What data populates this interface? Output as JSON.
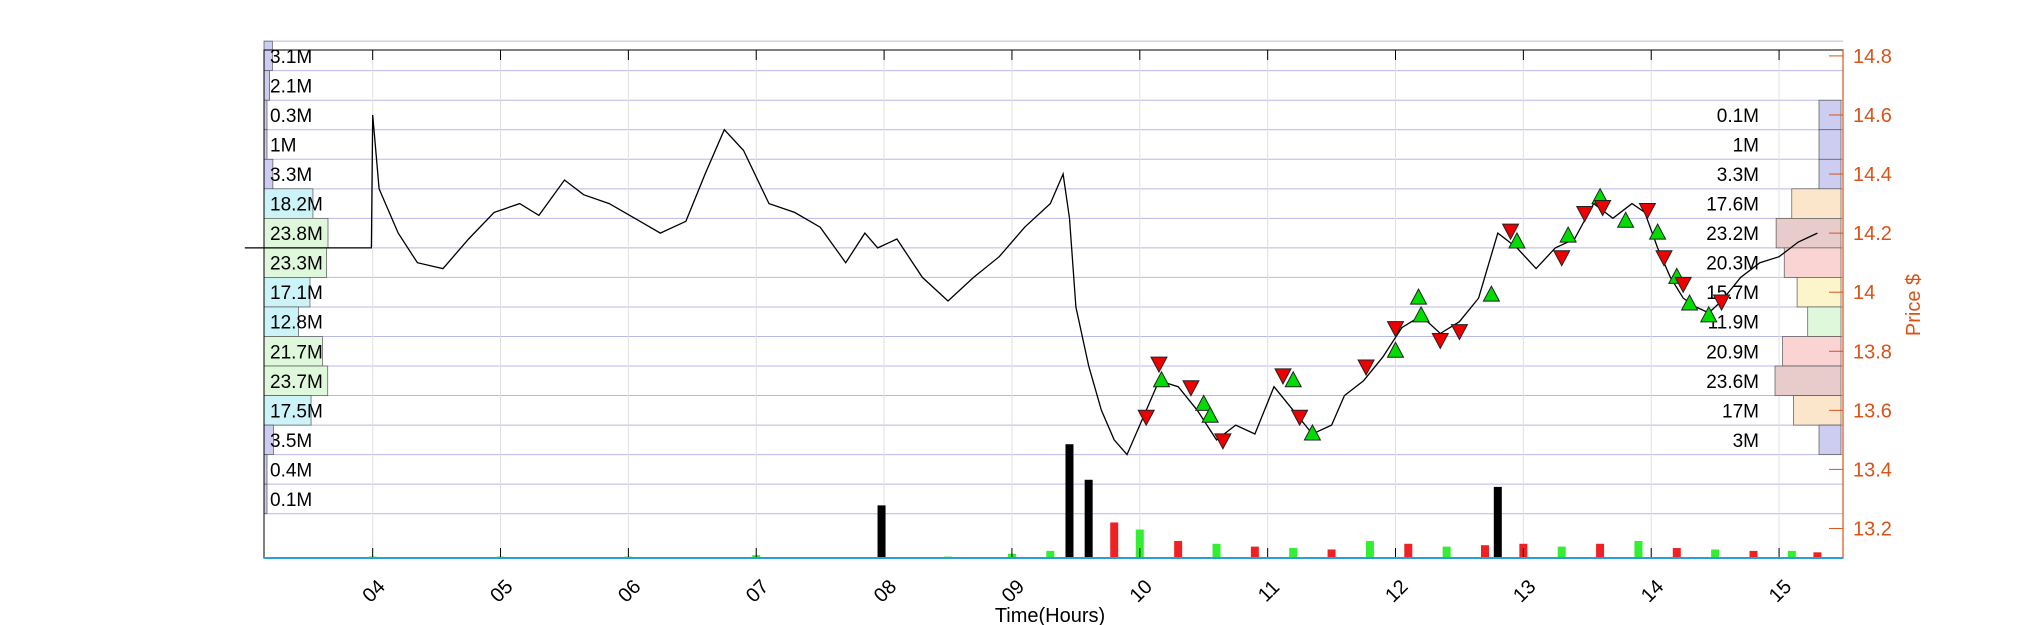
{
  "chart_data": {
    "type": "line",
    "xlabel": "Time(Hours)",
    "ylabel": "Price $",
    "x_ticks": [
      "04",
      "05",
      "06",
      "07",
      "08",
      "09",
      "10",
      "11",
      "12",
      "13",
      "14",
      "15"
    ],
    "x_range": [
      3.15,
      15.5
    ],
    "y_ticks": [
      "13.2",
      "13.4",
      "13.6",
      "13.8",
      "14",
      "14.2",
      "14.4",
      "14.6",
      "14.8"
    ],
    "ylim": [
      13.1,
      14.82
    ],
    "grid": true,
    "price_series": [
      [
        3.0,
        14.15
      ],
      [
        3.99,
        14.15
      ],
      [
        4.0,
        14.6
      ],
      [
        4.05,
        14.35
      ],
      [
        4.2,
        14.2
      ],
      [
        4.35,
        14.1
      ],
      [
        4.55,
        14.08
      ],
      [
        4.75,
        14.18
      ],
      [
        4.95,
        14.27
      ],
      [
        5.15,
        14.3
      ],
      [
        5.3,
        14.26
      ],
      [
        5.5,
        14.38
      ],
      [
        5.65,
        14.33
      ],
      [
        5.85,
        14.3
      ],
      [
        6.05,
        14.25
      ],
      [
        6.25,
        14.2
      ],
      [
        6.45,
        14.24
      ],
      [
        6.6,
        14.4
      ],
      [
        6.75,
        14.55
      ],
      [
        6.9,
        14.48
      ],
      [
        7.1,
        14.3
      ],
      [
        7.3,
        14.27
      ],
      [
        7.5,
        14.22
      ],
      [
        7.7,
        14.1
      ],
      [
        7.85,
        14.2
      ],
      [
        7.95,
        14.15
      ],
      [
        8.1,
        14.18
      ],
      [
        8.3,
        14.05
      ],
      [
        8.5,
        13.97
      ],
      [
        8.7,
        14.05
      ],
      [
        8.9,
        14.12
      ],
      [
        9.1,
        14.22
      ],
      [
        9.3,
        14.3
      ],
      [
        9.4,
        14.4
      ],
      [
        9.45,
        14.25
      ],
      [
        9.5,
        13.95
      ],
      [
        9.6,
        13.75
      ],
      [
        9.7,
        13.6
      ],
      [
        9.8,
        13.5
      ],
      [
        9.9,
        13.45
      ],
      [
        10.0,
        13.55
      ],
      [
        10.15,
        13.7
      ],
      [
        10.3,
        13.68
      ],
      [
        10.45,
        13.6
      ],
      [
        10.6,
        13.5
      ],
      [
        10.75,
        13.55
      ],
      [
        10.9,
        13.52
      ],
      [
        11.05,
        13.68
      ],
      [
        11.2,
        13.6
      ],
      [
        11.35,
        13.52
      ],
      [
        11.5,
        13.55
      ],
      [
        11.6,
        13.65
      ],
      [
        11.75,
        13.7
      ],
      [
        11.9,
        13.78
      ],
      [
        12.05,
        13.88
      ],
      [
        12.2,
        13.92
      ],
      [
        12.35,
        13.86
      ],
      [
        12.5,
        13.9
      ],
      [
        12.65,
        13.98
      ],
      [
        12.8,
        14.2
      ],
      [
        12.95,
        14.15
      ],
      [
        13.1,
        14.08
      ],
      [
        13.25,
        14.15
      ],
      [
        13.4,
        14.18
      ],
      [
        13.55,
        14.3
      ],
      [
        13.7,
        14.25
      ],
      [
        13.85,
        14.3
      ],
      [
        13.95,
        14.27
      ],
      [
        14.05,
        14.15
      ],
      [
        14.15,
        14.05
      ],
      [
        14.25,
        13.98
      ],
      [
        14.35,
        13.95
      ],
      [
        14.45,
        13.93
      ],
      [
        14.55,
        13.97
      ],
      [
        14.7,
        14.05
      ],
      [
        14.85,
        14.1
      ],
      [
        15.0,
        14.12
      ],
      [
        15.15,
        14.17
      ],
      [
        15.3,
        14.2
      ]
    ],
    "volume_series": [
      [
        4.0,
        0.01
      ],
      [
        5.0,
        0.01
      ],
      [
        6.0,
        0.01
      ],
      [
        7.0,
        0.02
      ],
      [
        7.98,
        0.37
      ],
      [
        8.5,
        0.01
      ],
      [
        9.0,
        0.03
      ],
      [
        9.3,
        0.05
      ],
      [
        9.45,
        0.8
      ],
      [
        9.6,
        0.55
      ],
      [
        9.8,
        0.25
      ],
      [
        10.0,
        0.2
      ],
      [
        10.3,
        0.12
      ],
      [
        10.6,
        0.1
      ],
      [
        10.9,
        0.08
      ],
      [
        11.2,
        0.07
      ],
      [
        11.5,
        0.06
      ],
      [
        11.8,
        0.12
      ],
      [
        12.1,
        0.1
      ],
      [
        12.4,
        0.08
      ],
      [
        12.7,
        0.09
      ],
      [
        12.8,
        0.5
      ],
      [
        13.0,
        0.1
      ],
      [
        13.3,
        0.08
      ],
      [
        13.6,
        0.1
      ],
      [
        13.9,
        0.12
      ],
      [
        14.2,
        0.07
      ],
      [
        14.5,
        0.06
      ],
      [
        14.8,
        0.05
      ],
      [
        15.1,
        0.05
      ],
      [
        15.3,
        0.04
      ]
    ],
    "green_markers": [
      [
        10.17,
        13.7
      ],
      [
        10.5,
        13.62
      ],
      [
        10.55,
        13.58
      ],
      [
        11.2,
        13.7
      ],
      [
        11.35,
        13.52
      ],
      [
        12.0,
        13.8
      ],
      [
        12.18,
        13.98
      ],
      [
        12.2,
        13.92
      ],
      [
        12.75,
        13.99
      ],
      [
        12.95,
        14.17
      ],
      [
        13.35,
        14.19
      ],
      [
        13.6,
        14.32
      ],
      [
        13.8,
        14.24
      ],
      [
        14.05,
        14.2
      ],
      [
        14.2,
        14.05
      ],
      [
        14.3,
        13.96
      ],
      [
        14.45,
        13.92
      ]
    ],
    "red_markers": [
      [
        10.15,
        13.76
      ],
      [
        10.05,
        13.58
      ],
      [
        10.4,
        13.68
      ],
      [
        10.65,
        13.5
      ],
      [
        11.12,
        13.72
      ],
      [
        11.25,
        13.58
      ],
      [
        11.77,
        13.75
      ],
      [
        12.0,
        13.88
      ],
      [
        12.35,
        13.84
      ],
      [
        12.5,
        13.87
      ],
      [
        12.9,
        14.21
      ],
      [
        13.3,
        14.12
      ],
      [
        13.48,
        14.27
      ],
      [
        13.62,
        14.29
      ],
      [
        13.97,
        14.28
      ],
      [
        14.1,
        14.12
      ],
      [
        14.25,
        14.03
      ],
      [
        14.55,
        13.97
      ]
    ],
    "volume_profile_left": [
      {
        "label": "3.1M",
        "value": 3.1,
        "price": 14.8
      },
      {
        "label": "2.1M",
        "value": 2.1,
        "price": 14.7
      },
      {
        "label": "0.3M",
        "value": 0.3,
        "price": 14.6
      },
      {
        "label": "1M",
        "value": 1.0,
        "price": 14.5
      },
      {
        "label": "3.3M",
        "value": 3.3,
        "price": 14.4
      },
      {
        "label": "18.2M",
        "value": 18.2,
        "price": 14.3
      },
      {
        "label": "23.8M",
        "value": 23.8,
        "price": 14.2
      },
      {
        "label": "23.3M",
        "value": 23.3,
        "price": 14.1
      },
      {
        "label": "17.1M",
        "value": 17.1,
        "price": 14.0
      },
      {
        "label": "12.8M",
        "value": 12.8,
        "price": 13.9
      },
      {
        "label": "21.7M",
        "value": 21.7,
        "price": 13.8
      },
      {
        "label": "23.7M",
        "value": 23.7,
        "price": 13.7
      },
      {
        "label": "17.5M",
        "value": 17.5,
        "price": 13.6
      },
      {
        "label": "3.5M",
        "value": 3.5,
        "price": 13.5
      },
      {
        "label": "0.4M",
        "value": 0.4,
        "price": 13.4
      },
      {
        "label": "0.1M",
        "value": 0.1,
        "price": 13.3
      }
    ],
    "volume_profile_right": [
      {
        "label": "0.1M",
        "value": 0.1,
        "price": 14.6
      },
      {
        "label": "1M",
        "value": 1.0,
        "price": 14.5
      },
      {
        "label": "3.3M",
        "value": 3.3,
        "price": 14.4
      },
      {
        "label": "17.6M",
        "value": 17.6,
        "price": 14.3
      },
      {
        "label": "23.2M",
        "value": 23.2,
        "price": 14.2
      },
      {
        "label": "20.3M",
        "value": 20.3,
        "price": 14.1
      },
      {
        "label": "15.7M",
        "value": 15.7,
        "price": 14.0
      },
      {
        "label": "11.9M",
        "value": 11.9,
        "price": 13.9
      },
      {
        "label": "20.9M",
        "value": 20.9,
        "price": 13.8
      },
      {
        "label": "23.6M",
        "value": 23.6,
        "price": 13.7
      },
      {
        "label": "17M",
        "value": 17.0,
        "price": 13.6
      },
      {
        "label": "3M",
        "value": 3.0,
        "price": 13.5
      }
    ],
    "colors": {
      "axis_right": "#D95319",
      "grid": "#b8b8e8",
      "profile_left": [
        "#cccdf0",
        "#cccdf0",
        "#cccdf0",
        "#cccdf0",
        "#cccdf0",
        "#ccf3f8",
        "#dff8dc",
        "#dff8dc",
        "#ccf3f8",
        "#ccf3f8",
        "#dff8dc",
        "#dff8dc",
        "#ccf3f8",
        "#cccdf0",
        "#cccdf0",
        "#cccdf0"
      ],
      "profile_right": [
        "#cccdf0",
        "#cccdf0",
        "#cccdf0",
        "#fbe6cc",
        "#e8cccc",
        "#fad3d3",
        "#fcf5cc",
        "#dff8dc",
        "#fad3d3",
        "#e8cccc",
        "#fbe6cc",
        "#cccdf0"
      ],
      "marker_up": "#00dd00",
      "marker_down": "#ee0000",
      "volume_green": "#33ee33",
      "volume_red": "#ee2222"
    }
  }
}
